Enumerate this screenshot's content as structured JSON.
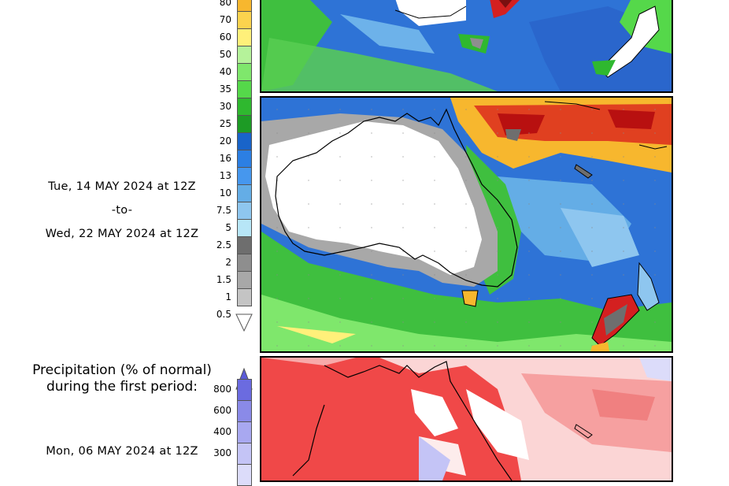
{
  "top_scale": {
    "labels": [
      "80",
      "70",
      "60",
      "50",
      "40",
      "35",
      "30",
      "25",
      "20",
      "16",
      "13",
      "10",
      "7.5",
      "5",
      "2.5",
      "2",
      "1.5",
      "1",
      "0.5"
    ],
    "colors": [
      "#f7b72e",
      "#fbd34e",
      "#fff07a",
      "#b5f29a",
      "#7fe76c",
      "#55d84a",
      "#2fb82f",
      "#1d9b25",
      "#1964c9",
      "#2c7fe3",
      "#4697ee",
      "#64ade6",
      "#8ec6ef",
      "#b7e6f7",
      "#6e6e6e",
      "#8e8e8e",
      "#a8a8a8",
      "#c4c4c4"
    ]
  },
  "period_main": {
    "start": "Tue, 14 MAY 2024 at 12Z",
    "sep": "-to-",
    "end": "Wed, 22 MAY 2024 at 12Z"
  },
  "percent_section": {
    "title_line1": "Precipitation (% of normal)",
    "title_line2": "during the first period:",
    "labels": [
      "800",
      "600",
      "400",
      "300"
    ],
    "colors": [
      "#6b6be0",
      "#8a8ae8",
      "#a8a8f0",
      "#c4c4f6",
      "#dcdcfa"
    ],
    "start": "Mon, 06 MAY 2024 at 12Z"
  },
  "maps": {
    "top": {
      "name": "precip-total-map-previous"
    },
    "middle": {
      "name": "precip-total-map-current"
    },
    "bottom": {
      "name": "precip-percent-normal-map"
    }
  },
  "colors": {
    "land_dry": "#ffffff",
    "ocean_blue": "#2c6fd4",
    "heavy_red": "#d42020",
    "pct_red": "#f04848"
  }
}
